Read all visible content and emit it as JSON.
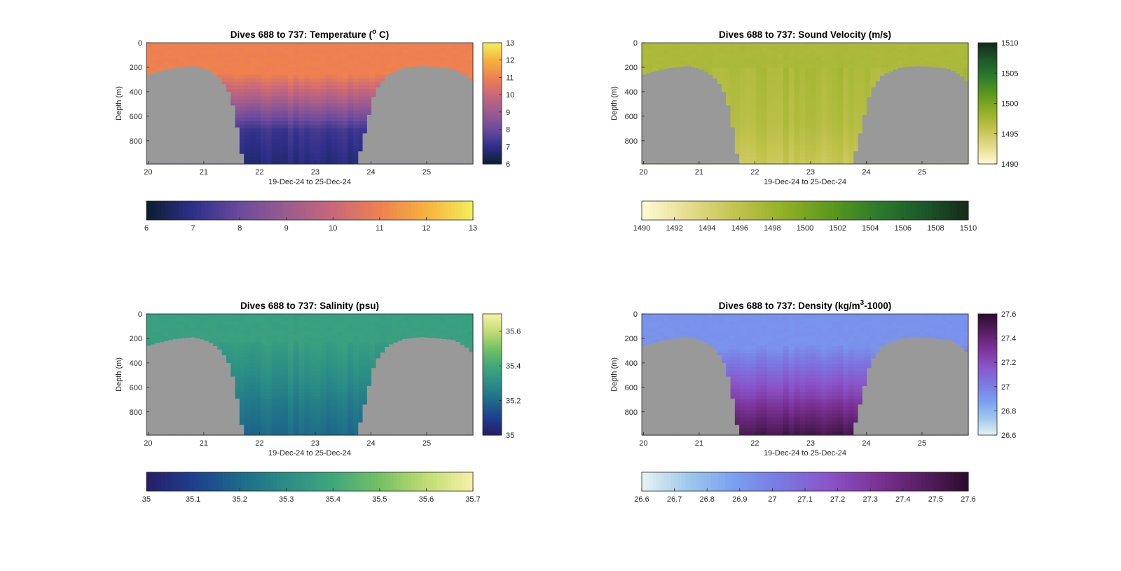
{
  "chart_data": [
    {
      "type": "heatmap",
      "title": "Dives 688 to 737: Temperature (",
      "title_sup": "o",
      "title_end": " C)",
      "xlabel": "19-Dec-24 to 25-Dec-24",
      "ylabel": "Depth (m)",
      "xlim": [
        19.97,
        25.83
      ],
      "ylim": [
        0,
        990
      ],
      "x_ticks": [
        "20",
        "21",
        "22",
        "23",
        "24",
        "25"
      ],
      "y_ticks": [
        "0",
        "200",
        "400",
        "600",
        "800"
      ],
      "colormap": [
        "#0b1e2e",
        "#2e2f8a",
        "#6a4a9c",
        "#9b5b8f",
        "#c8687a",
        "#ef8050",
        "#f7b13e",
        "#f2ef5a"
      ],
      "clim": [
        6,
        13
      ],
      "side_colorbar_ticks": [
        "6",
        "7",
        "8",
        "9",
        "10",
        "11",
        "12",
        "13"
      ],
      "bottom_colorbar_ticks": [
        "6",
        "7",
        "8",
        "9",
        "10",
        "11",
        "12",
        "13"
      ],
      "surface_value": 11.0,
      "deep_value": 7.3,
      "bottom_value": 6.8,
      "mixed_layer_depth_m": 260,
      "mask_color": "#999999"
    },
    {
      "type": "heatmap",
      "title": "Dives 688 to 737: Sound Velocity (m/s)",
      "xlabel": "19-Dec-24 to 25-Dec-24",
      "ylabel": "Depth (m)",
      "xlim": [
        19.97,
        25.83
      ],
      "ylim": [
        0,
        990
      ],
      "x_ticks": [
        "20",
        "21",
        "22",
        "23",
        "24",
        "25"
      ],
      "y_ticks": [
        "0",
        "200",
        "400",
        "600",
        "800"
      ],
      "colormap": [
        "#fffbd5",
        "#e6dc8e",
        "#c3c34e",
        "#94b127",
        "#5f9a1c",
        "#2e7d2c",
        "#1c5a2a",
        "#152a1a"
      ],
      "clim": [
        1490,
        1510
      ],
      "side_colorbar_ticks": [
        "1490",
        "1495",
        "1500",
        "1505",
        "1510"
      ],
      "bottom_colorbar_ticks": [
        "1490",
        "1492",
        "1494",
        "1496",
        "1498",
        "1500",
        "1502",
        "1504",
        "1506",
        "1508",
        "1510"
      ],
      "surface_value": 1497.2,
      "deep_value": 1496.6,
      "bottom_value": 1495.3,
      "mixed_layer_depth_m": 200,
      "mask_color": "#999999"
    },
    {
      "type": "heatmap",
      "title": "Dives 688 to 737: Salinity (psu)",
      "xlabel": "19-Dec-24 to 25-Dec-24",
      "ylabel": "Depth (m)",
      "xlim": [
        19.97,
        25.83
      ],
      "ylim": [
        0,
        990
      ],
      "x_ticks": [
        "20",
        "21",
        "22",
        "23",
        "24",
        "25"
      ],
      "y_ticks": [
        "0",
        "200",
        "400",
        "600",
        "800"
      ],
      "colormap": [
        "#281c66",
        "#1e3e8e",
        "#1d6a8a",
        "#2b8d86",
        "#3fa77d",
        "#74c063",
        "#c1dc72",
        "#f7f1a8"
      ],
      "clim": [
        35,
        35.7
      ],
      "side_colorbar_ticks": [
        "35",
        "35.2",
        "35.4",
        "35.6"
      ],
      "bottom_colorbar_ticks": [
        "35",
        "35.1",
        "35.2",
        "35.3",
        "35.4",
        "35.5",
        "35.6",
        "35.7"
      ],
      "surface_value": 35.37,
      "deep_value": 35.26,
      "bottom_value": 35.2,
      "mixed_layer_depth_m": 220,
      "mask_color": "#999999"
    },
    {
      "type": "heatmap",
      "title": "Dives 688 to 737: Density (kg/m",
      "title_sup": "3",
      "title_end": "-1000)",
      "xlabel": "19-Dec-24 to 25-Dec-24",
      "ylabel": "Depth (m)",
      "xlim": [
        19.97,
        25.83
      ],
      "ylim": [
        0,
        990
      ],
      "x_ticks": [
        "20",
        "21",
        "22",
        "23",
        "24",
        "25"
      ],
      "y_ticks": [
        "0",
        "200",
        "400",
        "600",
        "800"
      ],
      "colormap": [
        "#e8f3f5",
        "#9fc8ec",
        "#7a9ef0",
        "#7a78e2",
        "#8a54c9",
        "#7c3398",
        "#571f62",
        "#2b0c2e"
      ],
      "clim": [
        26.6,
        27.6
      ],
      "side_colorbar_ticks": [
        "26.6",
        "26.8",
        "27",
        "27.2",
        "27.4",
        "27.6"
      ],
      "bottom_colorbar_ticks": [
        "26.6",
        "26.7",
        "26.8",
        "26.9",
        "27",
        "27.1",
        "27.2",
        "27.3",
        "27.4",
        "27.5",
        "27.6"
      ],
      "surface_value": 26.93,
      "deep_value": 27.28,
      "bottom_value": 27.52,
      "mixed_layer_depth_m": 260,
      "mask_color": "#999999"
    }
  ],
  "bathymetry": {
    "days": [
      19.97,
      20.2,
      20.5,
      20.8,
      21.0,
      21.15,
      21.3,
      21.42,
      21.52,
      21.58,
      21.63,
      21.7,
      23.78,
      23.84,
      23.93,
      24.0,
      24.1,
      24.3,
      24.6,
      24.9,
      25.2,
      25.5,
      25.7,
      25.83
    ],
    "mask_top_m": [
      265,
      235,
      205,
      192,
      212,
      245,
      300,
      380,
      520,
      660,
      780,
      990,
      990,
      790,
      700,
      500,
      380,
      260,
      205,
      190,
      200,
      215,
      270,
      330
    ]
  }
}
